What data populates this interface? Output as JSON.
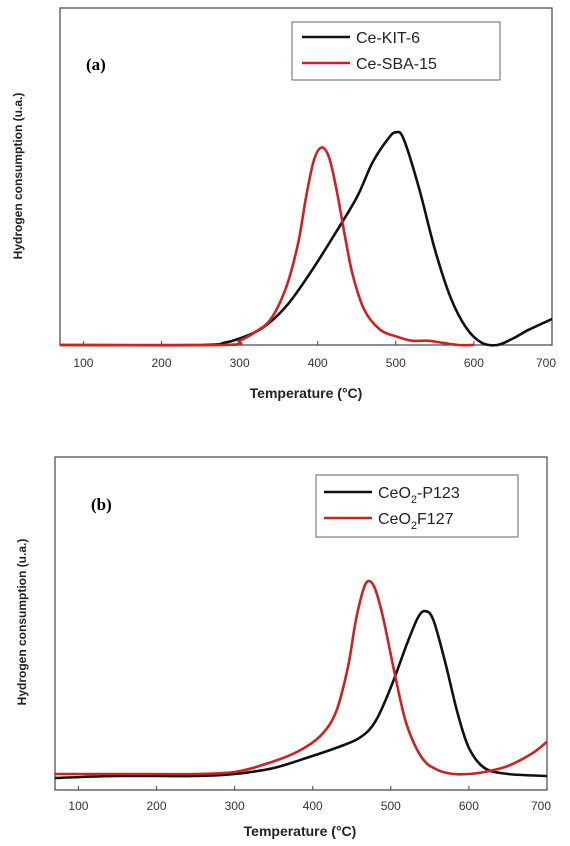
{
  "chart_data": [
    {
      "panel_label": "(a)",
      "type": "line",
      "xlabel": "Temperature (°C)",
      "ylabel": "Hydrogen consumption (u.a.)",
      "xlim": [
        70,
        700
      ],
      "ylim": [
        0,
        100
      ],
      "xticks": [
        100,
        200,
        300,
        400,
        500,
        600,
        700
      ],
      "legend_position": "top-right",
      "series": [
        {
          "name": "Ce-KIT-6",
          "color": "#111111",
          "x": [
            70,
            250,
            280,
            300,
            330,
            360,
            390,
            420,
            450,
            470,
            490,
            500,
            510,
            530,
            550,
            570,
            590,
            610,
            630,
            650,
            670,
            700
          ],
          "y": [
            0,
            0,
            1,
            3,
            8,
            18,
            33,
            50,
            68,
            84,
            95,
            98,
            95,
            72,
            44,
            22,
            8,
            1,
            0,
            3,
            7,
            12
          ]
        },
        {
          "name": "Ce-SBA-15",
          "color": "#cc2222",
          "x": [
            70,
            280,
            300,
            320,
            340,
            360,
            375,
            385,
            395,
            405,
            415,
            425,
            435,
            445,
            460,
            480,
            500,
            520,
            540,
            560,
            580,
            600
          ],
          "y": [
            0,
            0,
            2,
            6,
            12,
            27,
            47,
            68,
            85,
            91,
            86,
            70,
            50,
            32,
            16,
            7,
            4,
            2,
            2,
            1,
            0,
            0
          ]
        }
      ]
    },
    {
      "panel_label": "(b)",
      "type": "line",
      "xlabel": "Temperature (°C)",
      "ylabel": "Hydrogen consumption (u.a.)",
      "xlim": [
        70,
        700
      ],
      "ylim": [
        0,
        100
      ],
      "xticks": [
        100,
        200,
        300,
        400,
        500,
        600,
        700
      ],
      "legend_position": "top-right",
      "series": [
        {
          "name_main": "CeO",
          "name_sub": "2",
          "name_suffix": "-P123",
          "color": "#111111",
          "x": [
            70,
            150,
            250,
            300,
            350,
            400,
            430,
            460,
            480,
            500,
            520,
            535,
            545,
            555,
            570,
            585,
            600,
            620,
            650,
            700
          ],
          "y": [
            0,
            1,
            1,
            2,
            5,
            11,
            15,
            20,
            28,
            45,
            66,
            80,
            83,
            78,
            57,
            33,
            15,
            5,
            2,
            1
          ]
        },
        {
          "name_main": "CeO",
          "name_sub": "2",
          "name_suffix": "F127",
          "color": "#cc2222",
          "x": [
            70,
            150,
            250,
            300,
            340,
            380,
            410,
            430,
            445,
            455,
            465,
            472,
            480,
            490,
            505,
            520,
            540,
            560,
            580,
            600,
            620,
            650,
            680,
            700
          ],
          "y": [
            2,
            2,
            2,
            3,
            7,
            13,
            21,
            33,
            55,
            78,
            94,
            98,
            94,
            80,
            52,
            27,
            10,
            4,
            2,
            2,
            3,
            6,
            12,
            18
          ]
        }
      ]
    }
  ]
}
